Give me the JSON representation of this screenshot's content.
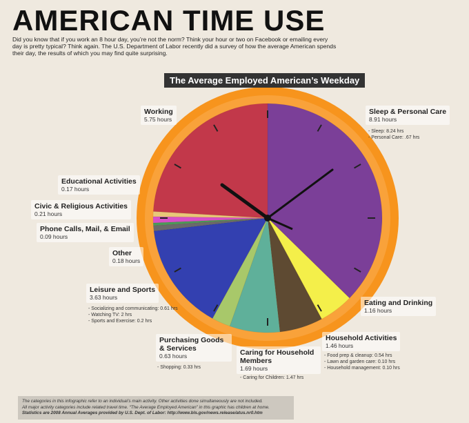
{
  "header": {
    "title": "AMERICAN TIME USE",
    "intro": "Did you know that if you work an 8 hour day, you’re not the norm? Think your hour or two on Facebook or emailing every day is pretty typical? Think again. The U.S. Department of Labor recently did a survey of how the average American spends their day, the results of which you may find quite surprising."
  },
  "chart_data": {
    "type": "pie",
    "title": "The Average Employed American’s Weekday",
    "categories": [
      "Sleep & Personal Care",
      "Eating and Drinking",
      "Household Activities",
      "Caring for Household Members",
      "Purchasing Goods & Services",
      "Leisure and Sports",
      "Other",
      "Phone Calls, Mail, & Email",
      "Civic & Religious Activities",
      "Educational Activities",
      "Working"
    ],
    "values": [
      8.91,
      1.16,
      1.46,
      1.69,
      0.63,
      3.63,
      0.18,
      0.09,
      0.21,
      0.17,
      5.75
    ],
    "value_labels": [
      "8.91 hours",
      "1.16 hours",
      "1.46 hours",
      "1.69 hours",
      "0.63 hours",
      "3.63 hours",
      "0.18 hours",
      "0.09 hours",
      "0.21 hours",
      "0.17 hours",
      "5.75 hours"
    ],
    "colors": [
      "#7b3f98",
      "#f4ef4a",
      "#5e4a32",
      "#5fb09a",
      "#a8c86a",
      "#3340b0",
      "#6a6a6a",
      "#4a9a5a",
      "#d850c8",
      "#e8c878",
      "#c2384a"
    ],
    "details": [
      [
        "- Sleep: 8.24 hrs",
        "- Personal Care: .67 hrs"
      ],
      [],
      [
        "- Food prep & cleanup: 0.54 hrs",
        "- Lawn and garden care: 0.10 hrs",
        "- Household management: 0.10 hrs"
      ],
      [
        "- Caring for Children: 1.47 hrs"
      ],
      [
        "- Shopping: 0.33 hrs"
      ],
      [
        "- Socializing and communicating: 0.61 hrs",
        "- Watching TV: 2 hrs",
        "- Sports and Exercise: 0.2 hrs"
      ],
      [],
      [],
      [],
      [],
      []
    ]
  },
  "footer": {
    "lines": [
      "The categories in this infographic refer to an individual’s main activity.  Other activities done simultaneously are not included.",
      "All major activity categories include related travel time.  “The Average Employed American” in this graphic has children at home.",
      "Statistics are 2008 Annual Averages provided by U.S. Dept. of Labor: http://www.bls.gov/news.release/atus.nr0.htm"
    ]
  }
}
